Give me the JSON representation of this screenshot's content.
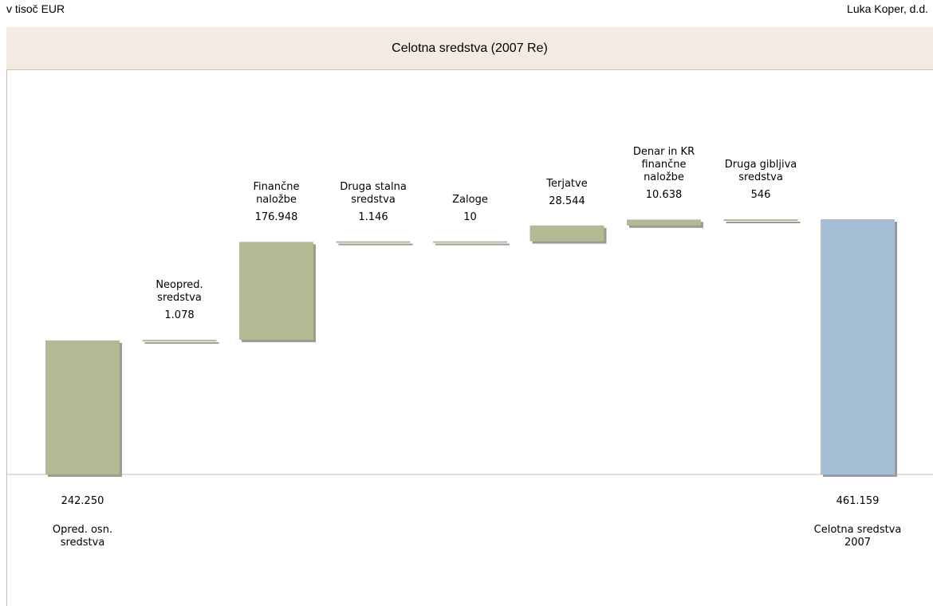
{
  "unit_label": "v tisoč EUR",
  "company": "Luka Koper, d.d.",
  "chart_data": {
    "type": "waterfall",
    "title": "Celotna sredstva (2007 Re)",
    "categories": [
      "Opred. osn.\nsredstva",
      "Neopred.\nsredstva",
      "Finančne\nnaložbe",
      "Druga stalna\nsredstva",
      "Zaloge",
      "Terjatve",
      "Denar in KR\nfinančne\nnaložbe",
      "Druga gibljiva\nsredstva",
      "Celotna sredstva\n2007"
    ],
    "values": [
      242250,
      1078,
      176948,
      1146,
      10,
      28544,
      10638,
      546,
      461159
    ],
    "value_labels": [
      "242.250",
      "1.078",
      "176.948",
      "1.146",
      "10",
      "28.544",
      "10.638",
      "546",
      "461.159"
    ],
    "measure": [
      "absolute",
      "relative",
      "relative",
      "relative",
      "relative",
      "relative",
      "relative",
      "relative",
      "total"
    ],
    "color": "#b4b993",
    "total_color": "#a6bfd7"
  }
}
